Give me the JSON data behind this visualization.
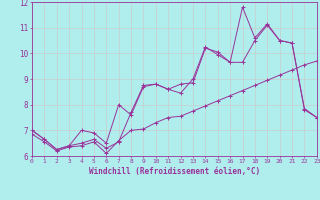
{
  "xlabel": "Windchill (Refroidissement éolien,°C)",
  "xlim": [
    0,
    23
  ],
  "ylim": [
    6,
    12
  ],
  "yticks": [
    6,
    7,
    8,
    9,
    10,
    11,
    12
  ],
  "xticks": [
    0,
    1,
    2,
    3,
    4,
    5,
    6,
    7,
    8,
    9,
    10,
    11,
    12,
    13,
    14,
    15,
    16,
    17,
    18,
    19,
    20,
    21,
    22,
    23
  ],
  "background_color": "#b0eeee",
  "grid_color": "#cccccc",
  "line_color": "#993399",
  "series1_x": [
    0,
    1,
    2,
    3,
    4,
    5,
    6,
    7,
    8,
    9,
    10,
    11,
    12,
    13,
    14,
    15,
    16,
    17,
    18,
    19,
    20,
    21,
    22,
    23
  ],
  "series1_y": [
    7.0,
    6.65,
    6.25,
    6.4,
    6.5,
    6.65,
    6.3,
    6.55,
    7.7,
    8.75,
    8.8,
    8.6,
    8.8,
    8.85,
    10.2,
    10.05,
    9.65,
    11.8,
    10.6,
    11.15,
    10.5,
    10.4,
    7.8,
    7.5
  ],
  "series2_x": [
    0,
    1,
    2,
    3,
    4,
    5,
    6,
    7,
    8,
    9,
    10,
    11,
    12,
    13,
    14,
    15,
    16,
    17,
    18,
    19,
    20,
    21,
    22,
    23
  ],
  "series2_y": [
    7.0,
    6.65,
    6.25,
    6.4,
    7.0,
    6.9,
    6.5,
    8.0,
    7.6,
    8.7,
    8.8,
    8.6,
    8.45,
    9.0,
    10.25,
    9.95,
    9.65,
    9.65,
    10.5,
    11.1,
    10.5,
    10.4,
    7.85,
    7.5
  ],
  "series3_x": [
    0,
    1,
    2,
    3,
    4,
    5,
    6,
    7,
    8,
    9,
    10,
    11,
    12,
    13,
    14,
    15,
    16,
    17,
    18,
    19,
    20,
    21,
    22,
    23
  ],
  "series3_y": [
    6.85,
    6.55,
    6.2,
    6.35,
    6.4,
    6.55,
    6.1,
    6.6,
    7.0,
    7.05,
    7.3,
    7.5,
    7.55,
    7.75,
    7.95,
    8.15,
    8.35,
    8.55,
    8.75,
    8.95,
    9.15,
    9.35,
    9.55,
    9.7
  ]
}
